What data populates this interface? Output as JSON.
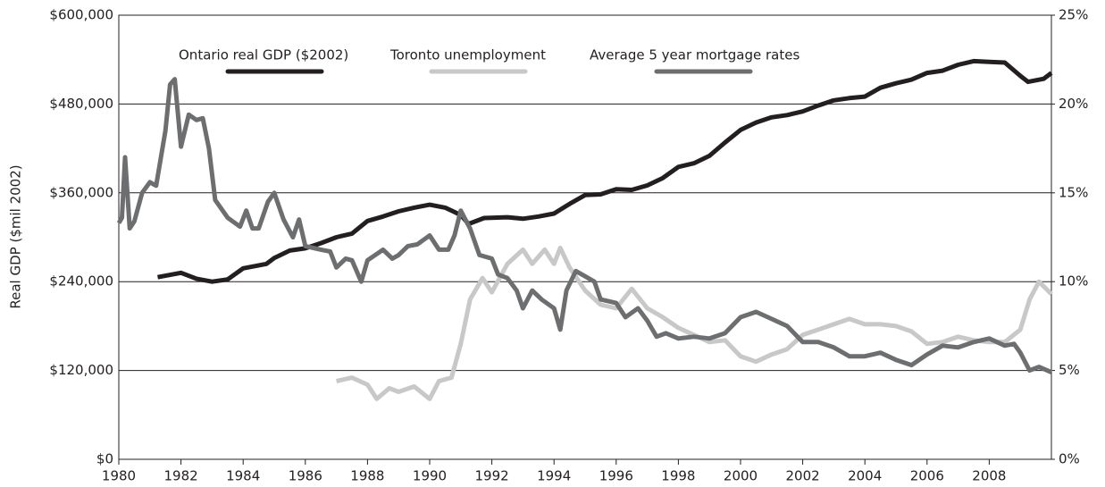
{
  "chart_data": {
    "type": "line",
    "y_label": "Real GDP ($mil 2002)",
    "xlim": [
      1980,
      2010
    ],
    "xticks": [
      1980,
      1982,
      1984,
      1986,
      1988,
      1990,
      1992,
      1994,
      1996,
      1998,
      2000,
      2002,
      2004,
      2006,
      2008
    ],
    "ylim": [
      0,
      600000
    ],
    "yticks": [
      {
        "value": 0,
        "label": "$0"
      },
      {
        "value": 120000,
        "label": "$120,000"
      },
      {
        "value": 240000,
        "label": "$240,000"
      },
      {
        "value": 360000,
        "label": "$360,000"
      },
      {
        "value": 480000,
        "label": "$480,000"
      },
      {
        "value": 600000,
        "label": "$600,000"
      }
    ],
    "y2lim": [
      0,
      25
    ],
    "y2ticks": [
      {
        "value": 0,
        "label": "0%"
      },
      {
        "value": 5,
        "label": "5%"
      },
      {
        "value": 10,
        "label": "10%"
      },
      {
        "value": 15,
        "label": "15%"
      },
      {
        "value": 20,
        "label": "20%"
      },
      {
        "value": 25,
        "label": "25%"
      }
    ],
    "grid": true,
    "legend": "top",
    "series": [
      {
        "name": "Ontario real GDP ($2002)",
        "color": "#231f20",
        "x": [
          1981.25,
          1981.75,
          1982,
          1982.5,
          1983,
          1983.5,
          1984,
          1984.75,
          1985,
          1985.5,
          1986,
          1986.5,
          1987,
          1987.5,
          1988,
          1988.5,
          1989,
          1989.5,
          1990,
          1990.5,
          1991,
          1991.25,
          1991.75,
          1992.5,
          1993,
          1993.5,
          1994,
          1994.5,
          1995,
          1995.5,
          1996,
          1996.5,
          1997,
          1997.5,
          1998,
          1998.5,
          1999,
          1999.5,
          2000,
          2000.5,
          2001,
          2001.5,
          2002,
          2002.5,
          2003,
          2003.5,
          2004,
          2004.5,
          2005,
          2005.5,
          2006,
          2006.5,
          2007,
          2007.5,
          2008,
          2008.5,
          2009,
          2009.25,
          2009.75,
          2010
        ],
        "values": [
          246000,
          250000,
          252000,
          244000,
          240000,
          243000,
          258000,
          264000,
          272000,
          282000,
          285000,
          292000,
          300000,
          305000,
          322000,
          328000,
          335000,
          340000,
          344000,
          340000,
          330000,
          318000,
          326000,
          327000,
          325000,
          328000,
          332000,
          345000,
          357000,
          358000,
          365000,
          364000,
          370000,
          380000,
          395000,
          400000,
          410000,
          428000,
          445000,
          455000,
          462000,
          465000,
          470000,
          478000,
          485000,
          488000,
          490000,
          502000,
          508000,
          513000,
          522000,
          525000,
          533000,
          538000,
          537000,
          536000,
          518000,
          510000,
          514000,
          522000
        ]
      },
      {
        "name": "Toronto unemployment",
        "color": "#c8c8c8",
        "axis": "y2",
        "x": [
          1987,
          1987.5,
          1988,
          1988.3,
          1988.7,
          1989,
          1989.5,
          1990,
          1990.3,
          1990.7,
          1991,
          1991.3,
          1991.7,
          1992,
          1992.5,
          1993,
          1993.3,
          1993.7,
          1994,
          1994.2,
          1994.5,
          1995,
          1995.5,
          1996,
          1996.5,
          1997,
          1997.5,
          1998,
          1998.5,
          1999,
          1999.5,
          2000,
          2000.5,
          2001,
          2001.5,
          2002,
          2002.5,
          2003,
          2003.5,
          2004,
          2004.5,
          2005,
          2005.5,
          2006,
          2006.5,
          2007,
          2007.5,
          2008,
          2008.5,
          2009,
          2009.3,
          2009.6,
          2010
        ],
        "values": [
          4.4,
          4.6,
          4.2,
          3.4,
          4.0,
          3.8,
          4.1,
          3.4,
          4.4,
          4.6,
          6.5,
          9.0,
          10.2,
          9.4,
          11.0,
          11.8,
          11.0,
          11.8,
          11.0,
          11.9,
          10.8,
          9.5,
          8.7,
          8.5,
          9.6,
          8.5,
          8.0,
          7.4,
          7.0,
          6.6,
          6.7,
          5.8,
          5.5,
          5.9,
          6.2,
          7.0,
          7.3,
          7.6,
          7.9,
          7.6,
          7.6,
          7.5,
          7.2,
          6.5,
          6.6,
          6.9,
          6.7,
          6.6,
          6.6,
          7.3,
          9.0,
          10.0,
          9.3
        ]
      },
      {
        "name": "Average 5 year mortgage rates",
        "color": "#6d6e70",
        "axis": "y2",
        "x": [
          1980,
          1980.1,
          1980.2,
          1980.35,
          1980.5,
          1980.75,
          1981,
          1981.2,
          1981.5,
          1981.65,
          1981.8,
          1982,
          1982.25,
          1982.5,
          1982.7,
          1982.9,
          1983.1,
          1983.5,
          1983.9,
          1984.1,
          1984.3,
          1984.5,
          1984.8,
          1985,
          1985.3,
          1985.6,
          1985.8,
          1986,
          1986.5,
          1986.8,
          1987,
          1987.3,
          1987.5,
          1987.8,
          1988,
          1988.5,
          1988.8,
          1989,
          1989.3,
          1989.6,
          1990,
          1990.3,
          1990.6,
          1990.8,
          1991,
          1991.3,
          1991.6,
          1992,
          1992.2,
          1992.5,
          1992.8,
          1993,
          1993.3,
          1993.6,
          1994,
          1994.2,
          1994.4,
          1994.7,
          1995,
          1995.3,
          1995.5,
          1996,
          1996.3,
          1996.7,
          1997,
          1997.3,
          1997.6,
          1998,
          1998.5,
          1999,
          1999.5,
          2000,
          2000.5,
          2001,
          2001.5,
          2002,
          2002.5,
          2003,
          2003.5,
          2004,
          2004.5,
          2005,
          2005.5,
          2006,
          2006.5,
          2007,
          2007.5,
          2008,
          2008.5,
          2008.8,
          2009,
          2009.3,
          2009.6,
          2010
        ],
        "values": [
          13.3,
          13.6,
          17.0,
          13.0,
          13.4,
          15.0,
          15.6,
          15.4,
          18.5,
          21.1,
          21.4,
          17.6,
          19.4,
          19.1,
          19.2,
          17.5,
          14.6,
          13.6,
          13.1,
          14.0,
          13.0,
          13.0,
          14.5,
          15.0,
          13.5,
          12.5,
          13.5,
          12.0,
          11.8,
          11.7,
          10.8,
          11.3,
          11.2,
          10.0,
          11.2,
          11.8,
          11.3,
          11.5,
          12.0,
          12.1,
          12.6,
          11.8,
          11.8,
          12.6,
          14.0,
          13.0,
          11.5,
          11.3,
          10.4,
          10.2,
          9.5,
          8.5,
          9.5,
          9.0,
          8.5,
          7.3,
          9.5,
          10.6,
          10.3,
          10.0,
          9.0,
          8.8,
          8.0,
          8.5,
          7.8,
          6.9,
          7.1,
          6.8,
          6.9,
          6.8,
          7.1,
          8.0,
          8.3,
          7.9,
          7.5,
          6.6,
          6.6,
          6.3,
          5.8,
          5.8,
          6.0,
          5.6,
          5.3,
          5.9,
          6.4,
          6.3,
          6.6,
          6.8,
          6.4,
          6.5,
          6.0,
          5.0,
          5.2,
          4.9
        ]
      }
    ]
  }
}
